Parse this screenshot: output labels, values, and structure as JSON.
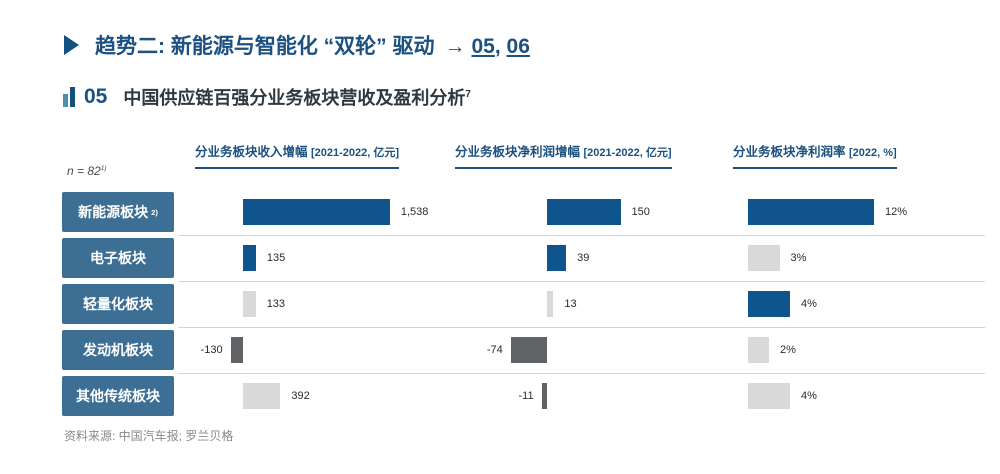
{
  "page": {
    "header": {
      "title": "趋势二: 新能源与智能化 “双轮” 驱动",
      "arrow": "→",
      "links": [
        "05",
        "06"
      ],
      "link_separator": ", "
    },
    "section": {
      "number": "05",
      "title": "中国供应链百强分业务板块营收及盈利分析",
      "title_superscript": "7"
    },
    "footer": "资料来源: 中国汽车报; 罗兰贝格"
  },
  "chart_data": {
    "type": "bar",
    "orientation": "horizontal",
    "sample_note": "n = 82",
    "sample_note_superscript": "1)",
    "categories": [
      "新能源板块",
      "电子板块",
      "轻量化板块",
      "发动机板块",
      "其他传统板块"
    ],
    "category_superscripts": [
      "2)",
      "",
      "",
      "",
      ""
    ],
    "series": [
      {
        "name": "分业务板块收入增幅",
        "unit_label": "[2021-2022, 亿元]",
        "values": [
          1538,
          135,
          133,
          -130,
          392
        ],
        "display": [
          "1,538",
          "135",
          "133",
          "-130",
          "392"
        ],
        "bar_colors": [
          "blue",
          "blue",
          "gray",
          "dark",
          "gray"
        ]
      },
      {
        "name": "分业务板块净利润增幅",
        "unit_label": "[2021-2022, 亿元]",
        "values": [
          150,
          39,
          13,
          -74,
          -11
        ],
        "display": [
          "150",
          "39",
          "13",
          "-74",
          "-11"
        ],
        "bar_colors": [
          "blue",
          "blue",
          "gray",
          "dark",
          "dark"
        ]
      },
      {
        "name": "分业务板块净利润率",
        "unit_label": "[2022, %]",
        "values": [
          12,
          3,
          4,
          2,
          4
        ],
        "display": [
          "12%",
          "3%",
          "4%",
          "2%",
          "4%"
        ],
        "bar_colors": [
          "blue",
          "gray",
          "blue",
          "gray",
          "gray"
        ]
      }
    ],
    "colors": {
      "blue": "#0f548c",
      "gray": "#d9d9d9",
      "dark": "#5f6366",
      "label_bg": "#3d6f94",
      "accent_text": "#1b5080"
    },
    "legend_position": "none",
    "grid": "row-separators-only"
  }
}
